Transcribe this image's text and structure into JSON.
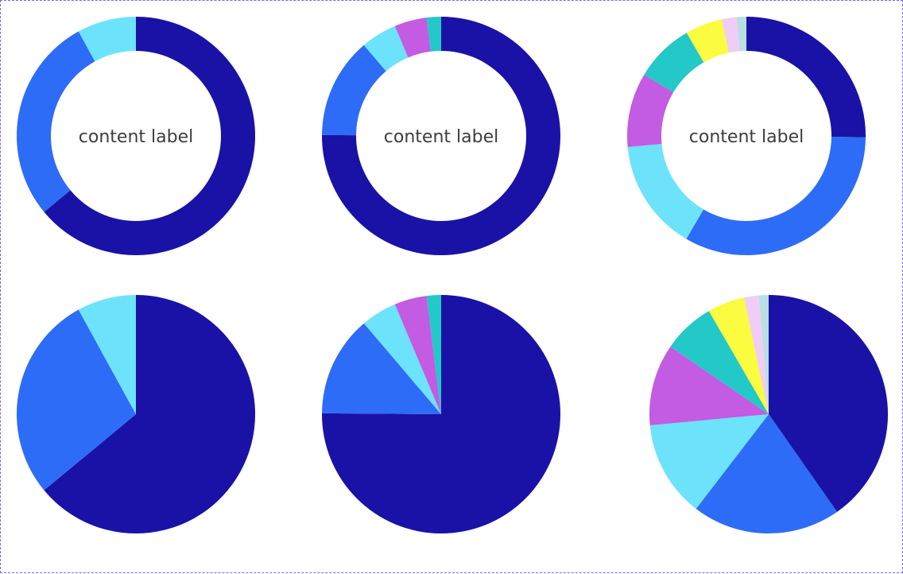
{
  "colors": {
    "frame_border": "#7b61ff",
    "palette": [
      "#1a12a6",
      "#2d6cf6",
      "#6ce3fb",
      "#c35be3",
      "#23c8c8",
      "#fbfb3f",
      "#efcdf7",
      "#b9dfe3"
    ]
  },
  "chart_data": [
    {
      "type": "donut",
      "center_label": "content label",
      "slices": [
        {
          "value": 64,
          "color": "#1a12a6"
        },
        {
          "value": 28,
          "color": "#2d6cf6"
        },
        {
          "value": 8,
          "color": "#6ce3fb"
        }
      ]
    },
    {
      "type": "donut",
      "center_label": "content label",
      "slices": [
        {
          "value": 77,
          "color": "#1a12a6"
        },
        {
          "value": 14,
          "color": "#2d6cf6"
        },
        {
          "value": 5,
          "color": "#6ce3fb"
        },
        {
          "value": 4.5,
          "color": "#c35be3"
        },
        {
          "value": 2,
          "color": "#23c8c8"
        }
      ]
    },
    {
      "type": "donut",
      "center_label": "content label",
      "slices": [
        {
          "value": 25,
          "color": "#1a12a6"
        },
        {
          "value": 33,
          "color": "#2d6cf6"
        },
        {
          "value": 15,
          "color": "#6ce3fb"
        },
        {
          "value": 10,
          "color": "#c35be3"
        },
        {
          "value": 8,
          "color": "#23c8c8"
        },
        {
          "value": 5,
          "color": "#fbfb3f"
        },
        {
          "value": 2,
          "color": "#efcdf7"
        },
        {
          "value": 1.3,
          "color": "#b9dfe3"
        }
      ]
    },
    {
      "type": "pie",
      "slices": [
        {
          "value": 64,
          "color": "#1a12a6"
        },
        {
          "value": 28,
          "color": "#2d6cf6"
        },
        {
          "value": 8,
          "color": "#6ce3fb"
        }
      ]
    },
    {
      "type": "pie",
      "slices": [
        {
          "value": 77,
          "color": "#1a12a6"
        },
        {
          "value": 14,
          "color": "#2d6cf6"
        },
        {
          "value": 5,
          "color": "#6ce3fb"
        },
        {
          "value": 4.5,
          "color": "#c35be3"
        },
        {
          "value": 2,
          "color": "#23c8c8"
        }
      ]
    },
    {
      "type": "pie",
      "slices": [
        {
          "value": 40,
          "color": "#1a12a6"
        },
        {
          "value": 20,
          "color": "#2d6cf6"
        },
        {
          "value": 13,
          "color": "#6ce3fb"
        },
        {
          "value": 11,
          "color": "#c35be3"
        },
        {
          "value": 7,
          "color": "#23c8c8"
        },
        {
          "value": 5,
          "color": "#fbfb3f"
        },
        {
          "value": 2,
          "color": "#efcdf7"
        },
        {
          "value": 1.3,
          "color": "#b9dfe3"
        }
      ]
    }
  ]
}
